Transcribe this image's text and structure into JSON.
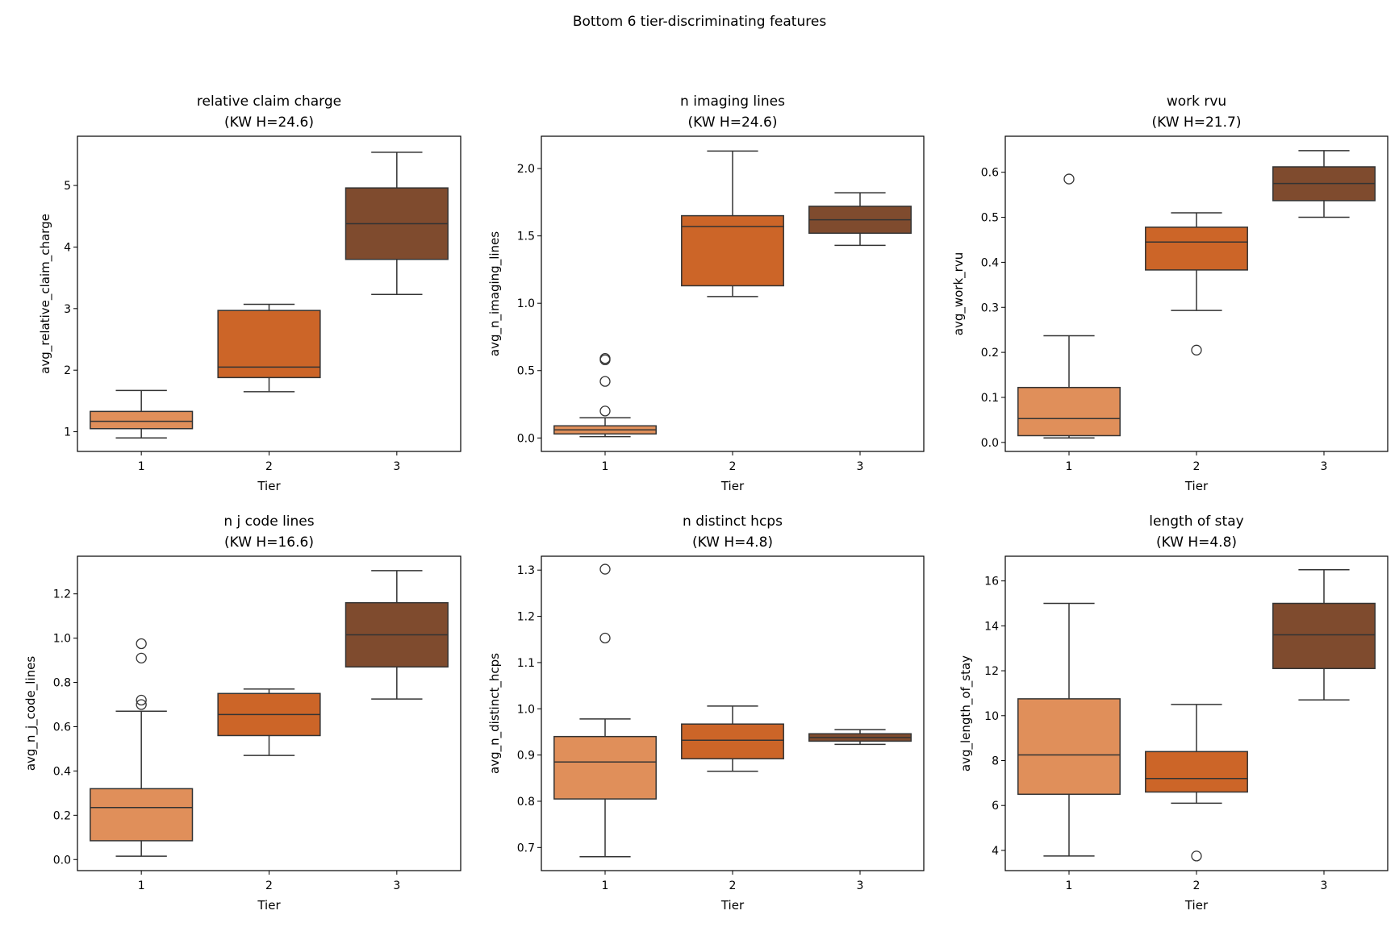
{
  "chart_data": {
    "suptitle": "Bottom 6 tier-discriminating features",
    "colors": {
      "1": "#e08f5a",
      "2": "#cc6528",
      "3": "#7f4b2e",
      "edge": "#333333"
    },
    "subplots": [
      {
        "type": "box",
        "title": "relative claim charge",
        "subtitle": "(KW H=24.6)",
        "xlabel": "Tier",
        "ylabel": "avg_relative_claim_charge",
        "categories": [
          "1",
          "2",
          "3"
        ],
        "ylim": [
          0.68,
          5.8
        ],
        "yticks": [
          1,
          2,
          3,
          4,
          5
        ],
        "ytick_labels": [
          "1",
          "2",
          "3",
          "4",
          "5"
        ],
        "boxes": [
          {
            "tier": "1",
            "whislo": 0.9,
            "q1": 1.05,
            "med": 1.17,
            "q3": 1.33,
            "whishi": 1.67,
            "fliers": []
          },
          {
            "tier": "2",
            "whislo": 1.65,
            "q1": 1.88,
            "med": 2.05,
            "q3": 2.97,
            "whishi": 3.07,
            "fliers": []
          },
          {
            "tier": "3",
            "whislo": 3.23,
            "q1": 3.8,
            "med": 4.38,
            "q3": 4.96,
            "whishi": 5.54,
            "fliers": []
          }
        ]
      },
      {
        "type": "box",
        "title": "n imaging lines",
        "subtitle": "(KW H=24.6)",
        "xlabel": "Tier",
        "ylabel": "avg_n_imaging_lines",
        "categories": [
          "1",
          "2",
          "3"
        ],
        "ylim": [
          -0.1,
          2.24
        ],
        "yticks": [
          0,
          0.5,
          1,
          1.5,
          2
        ],
        "ytick_labels": [
          "0.0",
          "0.5",
          "1.0",
          "1.5",
          "2.0"
        ],
        "boxes": [
          {
            "tier": "1",
            "whislo": 0.01,
            "q1": 0.03,
            "med": 0.06,
            "q3": 0.09,
            "whishi": 0.15,
            "fliers": [
              0.2,
              0.42,
              0.58,
              0.59
            ]
          },
          {
            "tier": "2",
            "whislo": 1.05,
            "q1": 1.13,
            "med": 1.57,
            "q3": 1.65,
            "whishi": 2.13,
            "fliers": []
          },
          {
            "tier": "3",
            "whislo": 1.43,
            "q1": 1.52,
            "med": 1.62,
            "q3": 1.72,
            "whishi": 1.82,
            "fliers": []
          }
        ]
      },
      {
        "type": "box",
        "title": "work rvu",
        "subtitle": "(KW H=21.7)",
        "xlabel": "Tier",
        "ylabel": "avg_work_rvu",
        "categories": [
          "1",
          "2",
          "3"
        ],
        "ylim": [
          -0.02,
          0.68
        ],
        "yticks": [
          0,
          0.1,
          0.2,
          0.3,
          0.4,
          0.5,
          0.6
        ],
        "ytick_labels": [
          "0.0",
          "0.1",
          "0.2",
          "0.3",
          "0.4",
          "0.5",
          "0.6"
        ],
        "boxes": [
          {
            "tier": "1",
            "whislo": 0.01,
            "q1": 0.015,
            "med": 0.053,
            "q3": 0.122,
            "whishi": 0.237,
            "fliers": [
              0.585
            ]
          },
          {
            "tier": "2",
            "whislo": 0.293,
            "q1": 0.383,
            "med": 0.445,
            "q3": 0.478,
            "whishi": 0.51,
            "fliers": [
              0.205
            ]
          },
          {
            "tier": "3",
            "whislo": 0.5,
            "q1": 0.537,
            "med": 0.575,
            "q3": 0.612,
            "whishi": 0.648,
            "fliers": []
          }
        ]
      },
      {
        "type": "box",
        "title": "n j code lines",
        "subtitle": "(KW H=16.6)",
        "xlabel": "Tier",
        "ylabel": "avg_n_j_code_lines",
        "categories": [
          "1",
          "2",
          "3"
        ],
        "ylim": [
          -0.05,
          1.37
        ],
        "yticks": [
          0,
          0.2,
          0.4,
          0.6,
          0.8,
          1.0,
          1.2
        ],
        "ytick_labels": [
          "0.0",
          "0.2",
          "0.4",
          "0.6",
          "0.8",
          "1.0",
          "1.2"
        ],
        "boxes": [
          {
            "tier": "1",
            "whislo": 0.015,
            "q1": 0.085,
            "med": 0.235,
            "q3": 0.32,
            "whishi": 0.67,
            "fliers": [
              0.7,
              0.72,
              0.91,
              0.975
            ]
          },
          {
            "tier": "2",
            "whislo": 0.47,
            "q1": 0.56,
            "med": 0.655,
            "q3": 0.75,
            "whishi": 0.77,
            "fliers": []
          },
          {
            "tier": "3",
            "whislo": 0.725,
            "q1": 0.87,
            "med": 1.015,
            "q3": 1.16,
            "whishi": 1.305,
            "fliers": []
          }
        ]
      },
      {
        "type": "box",
        "title": "n distinct hcps",
        "subtitle": "(KW H=4.8)",
        "xlabel": "Tier",
        "ylabel": "avg_n_distinct_hcps",
        "categories": [
          "1",
          "2",
          "3"
        ],
        "ylim": [
          0.65,
          1.33
        ],
        "yticks": [
          0.7,
          0.8,
          0.9,
          1.0,
          1.1,
          1.2,
          1.3
        ],
        "ytick_labels": [
          "0.7",
          "0.8",
          "0.9",
          "1.0",
          "1.1",
          "1.2",
          "1.3"
        ],
        "boxes": [
          {
            "tier": "1",
            "whislo": 0.68,
            "q1": 0.805,
            "med": 0.885,
            "q3": 0.94,
            "whishi": 0.978,
            "fliers": [
              1.153,
              1.302
            ]
          },
          {
            "tier": "2",
            "whislo": 0.865,
            "q1": 0.892,
            "med": 0.932,
            "q3": 0.967,
            "whishi": 1.006,
            "fliers": []
          },
          {
            "tier": "3",
            "whislo": 0.923,
            "q1": 0.93,
            "med": 0.938,
            "q3": 0.946,
            "whishi": 0.955,
            "fliers": []
          }
        ]
      },
      {
        "type": "box",
        "title": "length of stay",
        "subtitle": "(KW H=4.8)",
        "xlabel": "Tier",
        "ylabel": "avg_length_of_stay",
        "categories": [
          "1",
          "2",
          "3"
        ],
        "ylim": [
          3.1,
          17.1
        ],
        "yticks": [
          4,
          6,
          8,
          10,
          12,
          14,
          16
        ],
        "ytick_labels": [
          "4",
          "6",
          "8",
          "10",
          "12",
          "14",
          "16"
        ],
        "boxes": [
          {
            "tier": "1",
            "whislo": 3.75,
            "q1": 6.5,
            "med": 8.25,
            "q3": 10.75,
            "whishi": 15.0,
            "fliers": []
          },
          {
            "tier": "2",
            "whislo": 6.1,
            "q1": 6.6,
            "med": 7.2,
            "q3": 8.4,
            "whishi": 10.5,
            "fliers": [
              3.75
            ]
          },
          {
            "tier": "3",
            "whislo": 10.7,
            "q1": 12.1,
            "med": 13.6,
            "q3": 15.0,
            "whishi": 16.5,
            "fliers": []
          }
        ]
      }
    ]
  }
}
